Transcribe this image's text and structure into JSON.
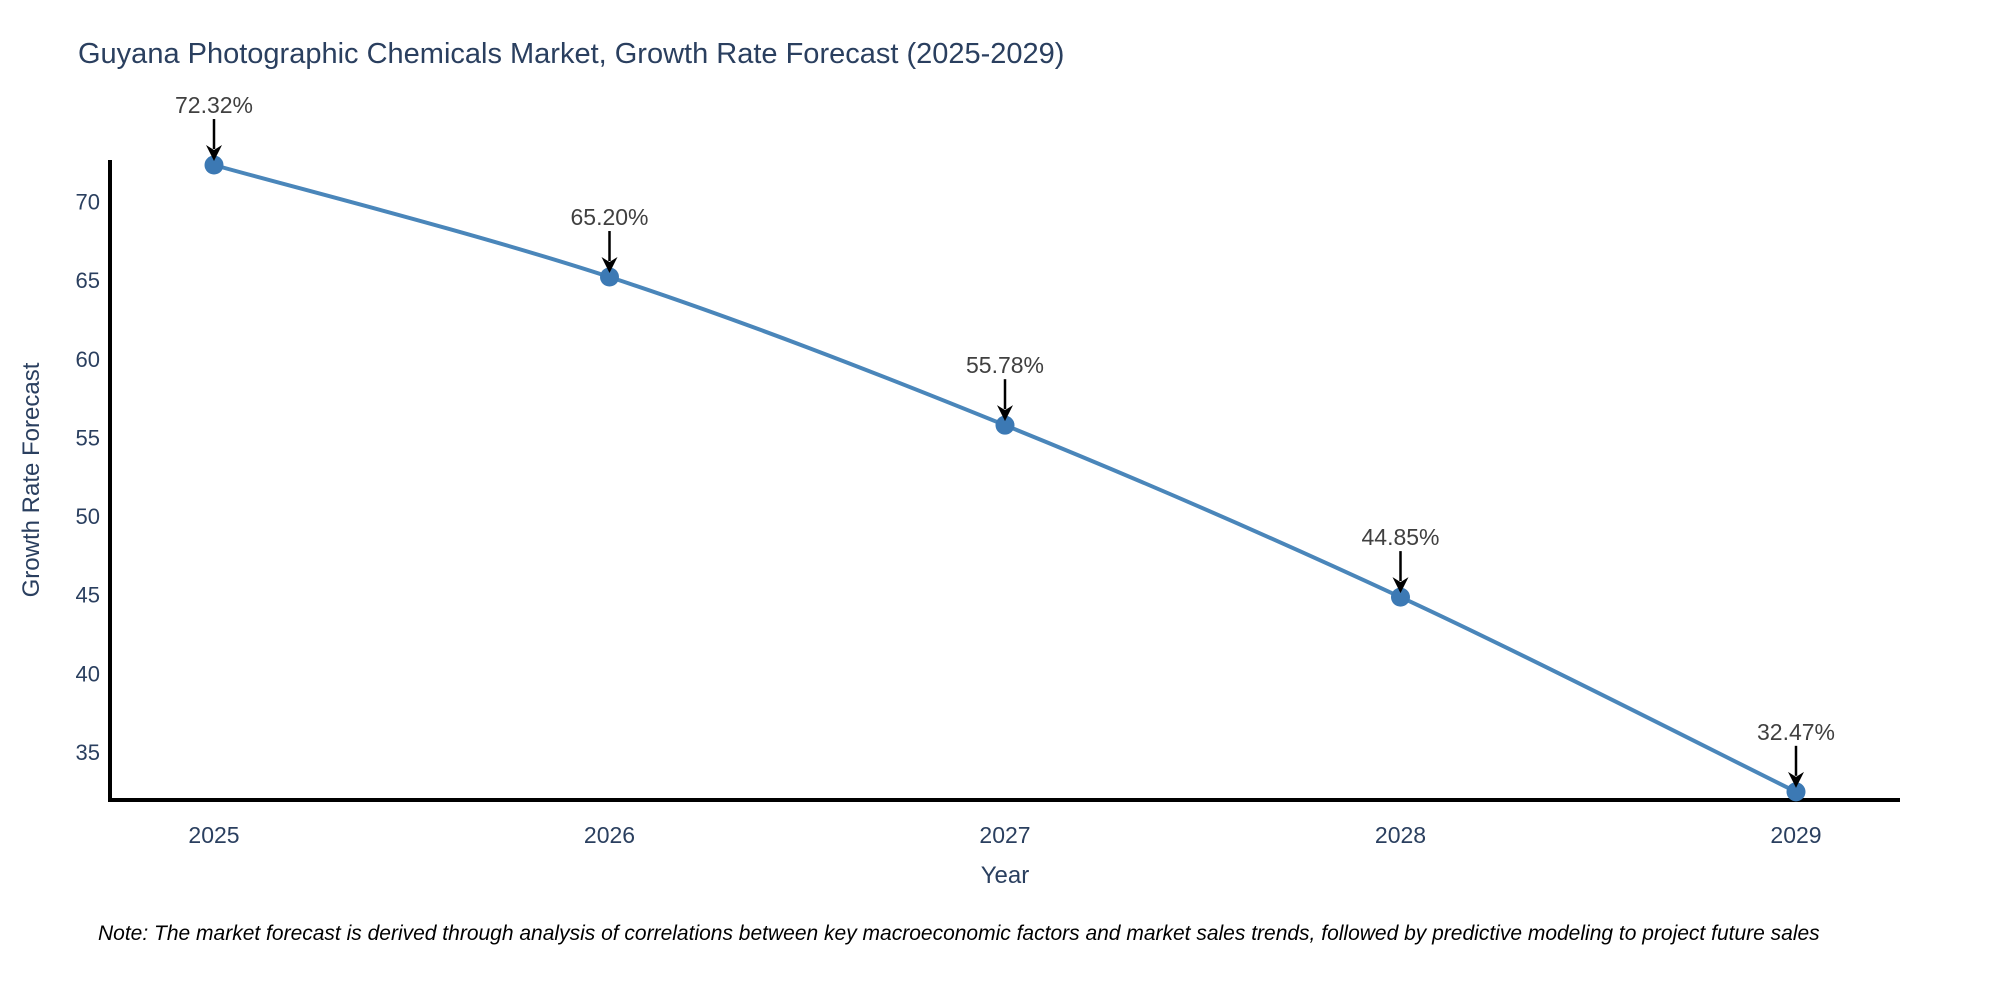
{
  "chart": {
    "title": "Guyana Photographic Chemicals Market, Growth Rate Forecast (2025-2029)",
    "xlabel": "Year",
    "ylabel": "Growth Rate Forecast"
  },
  "note": {
    "text": "Note: The market forecast is derived through analysis of correlations between key macroeconomic factors and market sales trends, followed by predictive modeling to project future sales"
  },
  "chart_data": {
    "type": "line",
    "title": "Guyana Photographic Chemicals Market, Growth Rate Forecast (2025-2029)",
    "xlabel": "Year",
    "ylabel": "Growth Rate Forecast",
    "x": [
      2025,
      2026,
      2027,
      2028,
      2029
    ],
    "series": [
      {
        "name": "Growth Rate Forecast",
        "values": [
          72.32,
          65.2,
          55.78,
          44.85,
          32.47
        ]
      }
    ],
    "point_labels": [
      "72.32%",
      "65.20%",
      "55.78%",
      "44.85%",
      "32.47%"
    ],
    "yticks": [
      35,
      40,
      45,
      50,
      55,
      60,
      65,
      70
    ],
    "ylim": [
      31.95,
      72.64
    ],
    "grid": false,
    "legend": false,
    "line_shape": "spline",
    "colors": {
      "line": "#4a86ba",
      "marker": "#3c79b4",
      "axis_line": "#000000",
      "tick_label": "#2a3f5f",
      "title": "#2a3f5f",
      "annotation_text": "#404040",
      "annotation_arrow": "#000000",
      "background": "#ffffff"
    }
  }
}
